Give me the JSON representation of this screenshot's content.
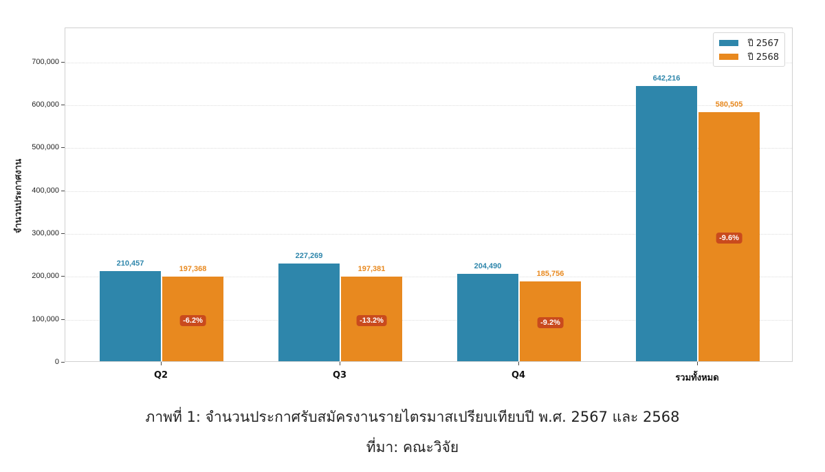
{
  "chart_data": {
    "type": "bar",
    "title": "",
    "xlabel": "",
    "ylabel": "จำนวนประกาศงาน",
    "categories": [
      "Q2",
      "Q3",
      "Q4",
      "รวมทั้งหมด"
    ],
    "series": [
      {
        "name": "ปี 2567",
        "color": "#2e86ab",
        "values": [
          210457,
          227269,
          204490,
          642216
        ],
        "labels": [
          "210,457",
          "227,269",
          "204,490",
          "642,216"
        ]
      },
      {
        "name": "ปี 2568",
        "color": "#e8891f",
        "values": [
          197368,
          197381,
          185756,
          580505
        ],
        "labels": [
          "197,368",
          "197,381",
          "185,756",
          "580,505"
        ]
      }
    ],
    "change_labels": [
      "-6.2%",
      "-13.2%",
      "-9.2%",
      "-9.6%"
    ],
    "change_label_color": "#c94a1d",
    "ylim": [
      0,
      780000
    ],
    "yticks": [
      0,
      100000,
      200000,
      300000,
      400000,
      500000,
      600000,
      700000
    ],
    "ytick_labels": [
      "0",
      "100,000",
      "200,000",
      "300,000",
      "400,000",
      "500,000",
      "600,000",
      "700,000"
    ],
    "grid": true,
    "legend_position": "upper right"
  },
  "caption": {
    "title": "ภาพที่ 1: จำนวนประกาศรับสมัครงานรายไตรมาสเปรียบเทียบปี พ.ศ. 2567 และ 2568",
    "source": "ที่มา: คณะวิจัย"
  }
}
